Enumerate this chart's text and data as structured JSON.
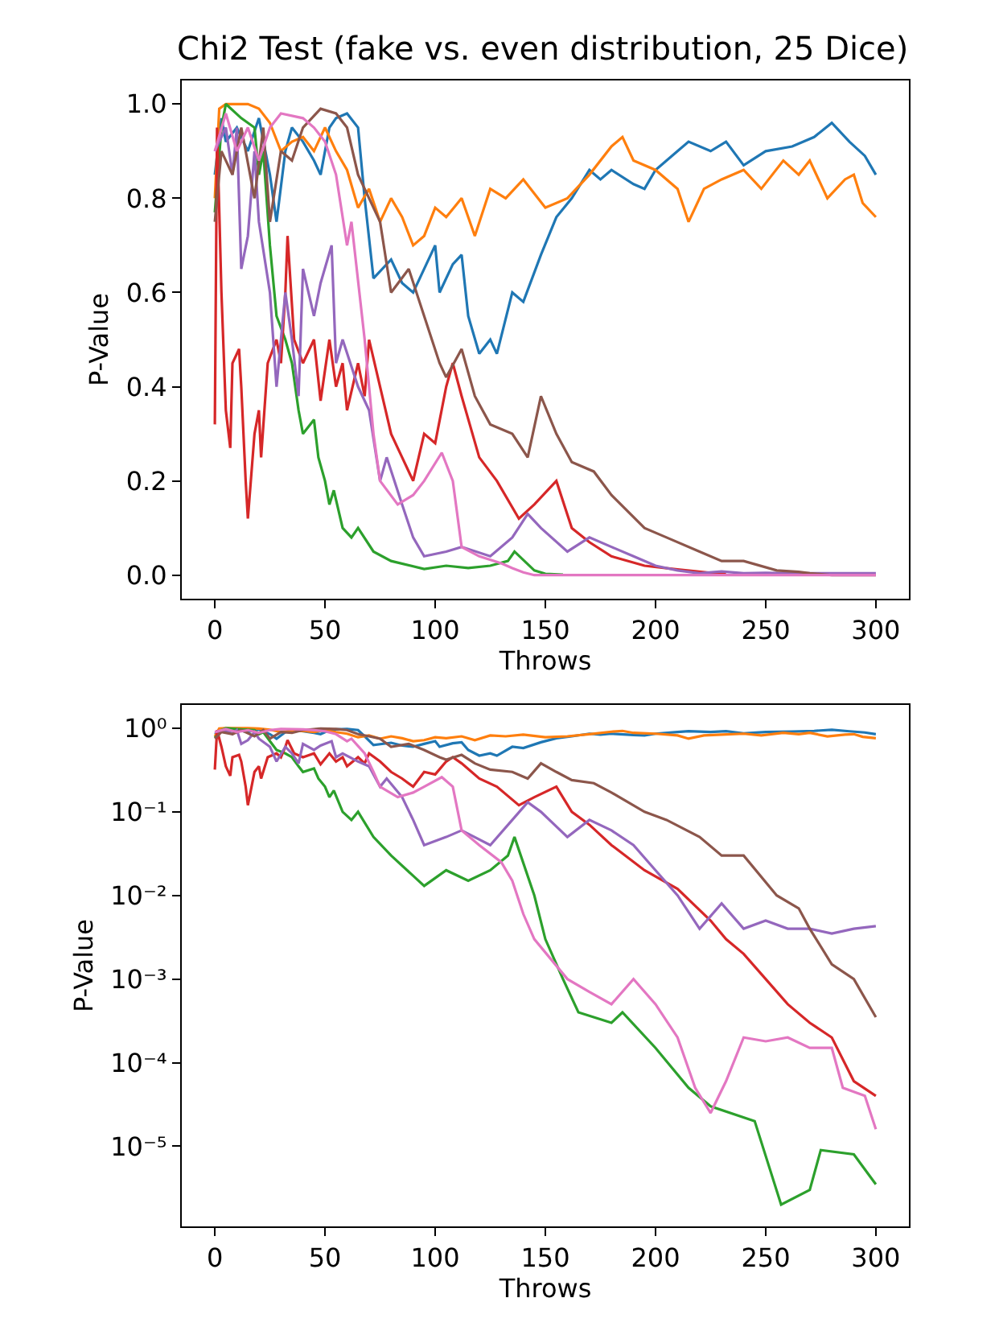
{
  "chart_data": [
    {
      "type": "line",
      "title": "Chi2 Test (fake vs. even distribution, 25 Dice)",
      "xlabel": "Throws",
      "ylabel": "P-Value",
      "xlim": [
        -15,
        315
      ],
      "ylim": [
        -0.05,
        1.05
      ],
      "xticks": [
        0,
        50,
        100,
        150,
        200,
        250,
        300
      ],
      "yticks": [
        {
          "value": 0,
          "label": "0.0"
        },
        0.2,
        0.4,
        0.6,
        0.8,
        {
          "value": 1,
          "label": "1.0"
        }
      ],
      "marker": "none",
      "line_style": "solid",
      "series": [
        {
          "color": "#1f77b4",
          "x": [
            0,
            3,
            5,
            10,
            15,
            20,
            25,
            28,
            32,
            35,
            40,
            45,
            48,
            52,
            55,
            60,
            65,
            68,
            72,
            80,
            85,
            90,
            95,
            100,
            102,
            108,
            112,
            115,
            120,
            125,
            128,
            135,
            140,
            148,
            155,
            162,
            170,
            175,
            180,
            190,
            195,
            200,
            210,
            215,
            225,
            232,
            240,
            250,
            262,
            272,
            280,
            288,
            295,
            300
          ],
          "values": [
            0.85,
            0.97,
            0.92,
            0.95,
            0.9,
            0.97,
            0.85,
            0.75,
            0.9,
            0.95,
            0.92,
            0.88,
            0.85,
            0.95,
            0.97,
            0.98,
            0.95,
            0.8,
            0.63,
            0.67,
            0.62,
            0.6,
            0.65,
            0.7,
            0.6,
            0.66,
            0.68,
            0.55,
            0.47,
            0.5,
            0.47,
            0.6,
            0.58,
            0.68,
            0.76,
            0.8,
            0.86,
            0.84,
            0.86,
            0.83,
            0.82,
            0.86,
            0.9,
            0.92,
            0.9,
            0.92,
            0.87,
            0.9,
            0.91,
            0.93,
            0.96,
            0.92,
            0.89,
            0.85
          ]
        },
        {
          "color": "#ff7f0e",
          "x": [
            0,
            2,
            5,
            10,
            15,
            20,
            25,
            30,
            35,
            40,
            45,
            50,
            55,
            60,
            65,
            70,
            75,
            80,
            85,
            90,
            95,
            100,
            105,
            112,
            118,
            125,
            132,
            140,
            150,
            160,
            170,
            180,
            185,
            190,
            200,
            210,
            215,
            222,
            230,
            240,
            248,
            258,
            265,
            270,
            278,
            286,
            290,
            294,
            300
          ],
          "values": [
            0.8,
            0.99,
            1.0,
            1.0,
            1.0,
            0.99,
            0.96,
            0.9,
            0.92,
            0.93,
            0.9,
            0.95,
            0.9,
            0.86,
            0.78,
            0.82,
            0.75,
            0.8,
            0.76,
            0.7,
            0.72,
            0.78,
            0.76,
            0.8,
            0.72,
            0.82,
            0.8,
            0.84,
            0.78,
            0.8,
            0.85,
            0.91,
            0.93,
            0.88,
            0.86,
            0.82,
            0.75,
            0.82,
            0.84,
            0.86,
            0.82,
            0.88,
            0.85,
            0.88,
            0.8,
            0.84,
            0.85,
            0.79,
            0.76
          ]
        },
        {
          "color": "#2ca02c",
          "x": [
            0,
            3,
            5,
            12,
            18,
            20,
            22,
            25,
            28,
            32,
            35,
            38,
            40,
            45,
            47,
            50,
            52,
            54,
            58,
            62,
            65,
            72,
            80,
            95,
            105,
            115,
            125,
            133,
            136,
            145,
            150,
            158
          ],
          "values": [
            0.77,
            0.95,
            1.0,
            0.97,
            0.95,
            0.85,
            0.9,
            0.7,
            0.55,
            0.5,
            0.45,
            0.35,
            0.3,
            0.33,
            0.25,
            0.2,
            0.15,
            0.18,
            0.1,
            0.08,
            0.1,
            0.05,
            0.03,
            0.013,
            0.02,
            0.015,
            0.02,
            0.03,
            0.05,
            0.01,
            0.003,
            0.001
          ]
        },
        {
          "color": "#d62728",
          "x": [
            0,
            1,
            3,
            5,
            7,
            8,
            11,
            12,
            14,
            15,
            18,
            20,
            21,
            24,
            28,
            30,
            32,
            33,
            36,
            40,
            45,
            48,
            52,
            55,
            58,
            60,
            65,
            68,
            70,
            75,
            80,
            85,
            90,
            95,
            100,
            105,
            108,
            112,
            120,
            128,
            138,
            145,
            155,
            162,
            170,
            180,
            195,
            210,
            225,
            232
          ],
          "values": [
            0.32,
            0.95,
            0.6,
            0.35,
            0.27,
            0.45,
            0.48,
            0.4,
            0.2,
            0.12,
            0.3,
            0.35,
            0.25,
            0.45,
            0.5,
            0.45,
            0.6,
            0.72,
            0.5,
            0.45,
            0.5,
            0.37,
            0.5,
            0.4,
            0.45,
            0.35,
            0.45,
            0.38,
            0.5,
            0.4,
            0.3,
            0.25,
            0.2,
            0.3,
            0.28,
            0.4,
            0.45,
            0.38,
            0.25,
            0.2,
            0.12,
            0.15,
            0.2,
            0.1,
            0.07,
            0.04,
            0.02,
            0.012,
            0.005,
            0.003
          ]
        },
        {
          "color": "#9467bd",
          "x": [
            0,
            5,
            8,
            10,
            12,
            15,
            18,
            20,
            25,
            28,
            32,
            35,
            38,
            40,
            45,
            48,
            53,
            55,
            58,
            65,
            70,
            75,
            78,
            85,
            90,
            95,
            105,
            112,
            125,
            135,
            142,
            148,
            160,
            170,
            180,
            190,
            200,
            210,
            220,
            230,
            240,
            250,
            260,
            270,
            280,
            290,
            300
          ],
          "values": [
            0.9,
            0.95,
            0.85,
            0.95,
            0.65,
            0.72,
            0.9,
            0.75,
            0.6,
            0.4,
            0.6,
            0.5,
            0.38,
            0.65,
            0.55,
            0.62,
            0.7,
            0.45,
            0.5,
            0.4,
            0.35,
            0.2,
            0.25,
            0.15,
            0.08,
            0.04,
            0.05,
            0.06,
            0.04,
            0.08,
            0.13,
            0.1,
            0.05,
            0.08,
            0.06,
            0.04,
            0.02,
            0.01,
            0.004,
            0.008,
            0.004,
            0.005,
            0.004,
            0.004,
            0.004,
            0.004,
            0.004
          ]
        },
        {
          "color": "#8c564b",
          "x": [
            0,
            3,
            8,
            12,
            18,
            22,
            25,
            30,
            35,
            40,
            48,
            55,
            60,
            65,
            70,
            75,
            80,
            88,
            95,
            102,
            105,
            112,
            118,
            125,
            135,
            142,
            148,
            155,
            162,
            172,
            180,
            195,
            205,
            220,
            230,
            240,
            255,
            265,
            270,
            280,
            290,
            300
          ],
          "values": [
            0.75,
            0.9,
            0.85,
            0.95,
            0.8,
            0.95,
            0.75,
            0.9,
            0.88,
            0.95,
            0.99,
            0.98,
            0.95,
            0.85,
            0.8,
            0.75,
            0.6,
            0.65,
            0.55,
            0.45,
            0.42,
            0.48,
            0.38,
            0.32,
            0.3,
            0.25,
            0.38,
            0.3,
            0.24,
            0.22,
            0.17,
            0.1,
            0.08,
            0.05,
            0.03,
            0.03,
            0.01,
            0.007,
            0.004,
            0.0,
            0.0,
            0.0
          ]
        },
        {
          "color": "#e377c2",
          "x": [
            0,
            5,
            10,
            15,
            20,
            25,
            30,
            40,
            45,
            50,
            55,
            60,
            62,
            68,
            72,
            75,
            83,
            90,
            95,
            103,
            108,
            112,
            120,
            130,
            135,
            140,
            145,
            160,
            170,
            180,
            190,
            200,
            210,
            218,
            225,
            232,
            240,
            250,
            260,
            270,
            280,
            285,
            295,
            300
          ],
          "values": [
            0.9,
            0.98,
            0.9,
            0.95,
            0.88,
            0.95,
            0.98,
            0.97,
            0.95,
            0.92,
            0.85,
            0.7,
            0.75,
            0.5,
            0.3,
            0.2,
            0.15,
            0.17,
            0.2,
            0.26,
            0.2,
            0.06,
            0.04,
            0.025,
            0.015,
            0.006,
            0.0,
            0.0,
            0.0,
            0.0,
            0.0,
            0.0,
            0.0,
            0.0,
            0.0,
            0.0,
            0.0,
            0.0,
            0.0,
            0.0,
            0.0,
            0.0,
            0.0,
            0.0
          ]
        }
      ]
    },
    {
      "type": "line",
      "xlabel": "Throws",
      "ylabel": "P-Value",
      "log": "y",
      "xlim": [
        -15,
        315
      ],
      "ylim": [
        1.1e-06,
        1.9
      ],
      "xticks": [
        0,
        50,
        100,
        150,
        200,
        250,
        300
      ],
      "yticks": [
        {
          "value": 1e-05,
          "label": "10⁻⁵"
        },
        {
          "value": 0.0001,
          "label": "10⁻⁴"
        },
        {
          "value": 0.001,
          "label": "10⁻³"
        },
        {
          "value": 0.01,
          "label": "10⁻²"
        },
        {
          "value": 0.1,
          "label": "10⁻¹"
        },
        {
          "value": 1,
          "label": "10⁰"
        }
      ],
      "marker": "none",
      "line_style": "solid",
      "series": [
        {
          "color": "#1f77b4",
          "x": [
            0,
            3,
            5,
            10,
            15,
            20,
            25,
            28,
            32,
            35,
            40,
            45,
            48,
            52,
            55,
            60,
            65,
            68,
            72,
            80,
            85,
            90,
            95,
            100,
            102,
            108,
            112,
            115,
            120,
            125,
            128,
            135,
            140,
            148,
            155,
            162,
            170,
            175,
            180,
            190,
            195,
            200,
            210,
            215,
            225,
            232,
            240,
            250,
            262,
            272,
            280,
            288,
            295,
            300
          ],
          "values": [
            0.85,
            0.97,
            0.92,
            0.95,
            0.9,
            0.97,
            0.85,
            0.75,
            0.9,
            0.95,
            0.92,
            0.88,
            0.85,
            0.95,
            0.97,
            0.98,
            0.95,
            0.8,
            0.63,
            0.67,
            0.62,
            0.6,
            0.65,
            0.7,
            0.6,
            0.66,
            0.68,
            0.55,
            0.47,
            0.5,
            0.47,
            0.6,
            0.58,
            0.68,
            0.76,
            0.8,
            0.86,
            0.84,
            0.86,
            0.83,
            0.82,
            0.86,
            0.9,
            0.92,
            0.9,
            0.92,
            0.87,
            0.9,
            0.91,
            0.93,
            0.96,
            0.92,
            0.89,
            0.85
          ]
        },
        {
          "color": "#ff7f0e",
          "x": [
            0,
            2,
            5,
            10,
            15,
            20,
            25,
            30,
            35,
            40,
            45,
            50,
            55,
            60,
            65,
            70,
            75,
            80,
            85,
            90,
            95,
            100,
            105,
            112,
            118,
            125,
            132,
            140,
            150,
            160,
            170,
            180,
            185,
            190,
            200,
            210,
            215,
            222,
            230,
            240,
            248,
            258,
            265,
            270,
            278,
            286,
            290,
            294,
            300
          ],
          "values": [
            0.8,
            0.99,
            1.0,
            1.0,
            1.0,
            0.99,
            0.96,
            0.9,
            0.92,
            0.93,
            0.9,
            0.95,
            0.9,
            0.86,
            0.78,
            0.82,
            0.75,
            0.8,
            0.76,
            0.7,
            0.72,
            0.78,
            0.76,
            0.8,
            0.72,
            0.82,
            0.8,
            0.84,
            0.78,
            0.8,
            0.85,
            0.91,
            0.93,
            0.88,
            0.86,
            0.82,
            0.75,
            0.82,
            0.84,
            0.86,
            0.82,
            0.88,
            0.85,
            0.88,
            0.8,
            0.84,
            0.85,
            0.79,
            0.76
          ]
        },
        {
          "color": "#2ca02c",
          "x": [
            0,
            3,
            5,
            12,
            18,
            20,
            22,
            25,
            28,
            32,
            35,
            38,
            40,
            45,
            47,
            50,
            52,
            54,
            58,
            62,
            65,
            72,
            80,
            95,
            105,
            115,
            125,
            133,
            136,
            145,
            150,
            158,
            165,
            180,
            185,
            200,
            215,
            225,
            245,
            257,
            270,
            275,
            290,
            300
          ],
          "values": [
            0.77,
            0.95,
            1.0,
            0.97,
            0.95,
            0.85,
            0.9,
            0.7,
            0.55,
            0.5,
            0.45,
            0.35,
            0.3,
            0.33,
            0.25,
            0.2,
            0.15,
            0.18,
            0.1,
            0.08,
            0.1,
            0.05,
            0.03,
            0.013,
            0.02,
            0.015,
            0.02,
            0.03,
            0.05,
            0.01,
            0.003,
            0.001,
            0.0004,
            0.0003,
            0.0004,
            0.00015,
            5e-05,
            3e-05,
            2e-05,
            2e-06,
            3e-06,
            9e-06,
            8e-06,
            3.5e-06
          ]
        },
        {
          "color": "#d62728",
          "x": [
            0,
            1,
            3,
            5,
            7,
            8,
            11,
            12,
            14,
            15,
            18,
            20,
            21,
            24,
            28,
            30,
            32,
            33,
            36,
            40,
            45,
            48,
            52,
            55,
            58,
            60,
            65,
            68,
            70,
            75,
            80,
            85,
            90,
            95,
            100,
            105,
            108,
            112,
            120,
            128,
            138,
            145,
            155,
            162,
            170,
            180,
            195,
            210,
            225,
            232,
            240,
            250,
            260,
            270,
            280,
            290,
            300
          ],
          "values": [
            0.32,
            0.95,
            0.6,
            0.35,
            0.27,
            0.45,
            0.48,
            0.4,
            0.2,
            0.12,
            0.3,
            0.35,
            0.25,
            0.45,
            0.5,
            0.45,
            0.6,
            0.72,
            0.5,
            0.45,
            0.5,
            0.37,
            0.5,
            0.4,
            0.45,
            0.35,
            0.45,
            0.38,
            0.5,
            0.4,
            0.3,
            0.25,
            0.2,
            0.3,
            0.28,
            0.4,
            0.45,
            0.38,
            0.25,
            0.2,
            0.12,
            0.15,
            0.2,
            0.1,
            0.07,
            0.04,
            0.02,
            0.012,
            0.005,
            0.003,
            0.002,
            0.001,
            0.0005,
            0.0003,
            0.0002,
            6e-05,
            4e-05
          ]
        },
        {
          "color": "#9467bd",
          "x": [
            0,
            5,
            8,
            10,
            12,
            15,
            18,
            20,
            25,
            28,
            32,
            35,
            38,
            40,
            45,
            48,
            53,
            55,
            58,
            65,
            70,
            75,
            78,
            85,
            90,
            95,
            105,
            112,
            125,
            135,
            142,
            148,
            160,
            170,
            180,
            190,
            200,
            210,
            220,
            230,
            240,
            250,
            260,
            270,
            280,
            290,
            300
          ],
          "values": [
            0.9,
            0.95,
            0.85,
            0.95,
            0.65,
            0.72,
            0.9,
            0.75,
            0.6,
            0.4,
            0.6,
            0.5,
            0.38,
            0.65,
            0.55,
            0.62,
            0.7,
            0.45,
            0.5,
            0.4,
            0.35,
            0.2,
            0.25,
            0.15,
            0.08,
            0.04,
            0.05,
            0.06,
            0.04,
            0.08,
            0.13,
            0.1,
            0.05,
            0.08,
            0.06,
            0.04,
            0.02,
            0.01,
            0.004,
            0.008,
            0.004,
            0.005,
            0.004,
            0.004,
            0.0035,
            0.004,
            0.0043
          ]
        },
        {
          "color": "#8c564b",
          "x": [
            0,
            3,
            8,
            12,
            18,
            22,
            25,
            30,
            35,
            40,
            48,
            55,
            60,
            65,
            70,
            75,
            80,
            88,
            95,
            102,
            105,
            112,
            118,
            125,
            135,
            142,
            148,
            155,
            162,
            172,
            180,
            195,
            205,
            220,
            230,
            240,
            255,
            265,
            270,
            280,
            290,
            300
          ],
          "values": [
            0.75,
            0.9,
            0.85,
            0.95,
            0.8,
            0.95,
            0.75,
            0.9,
            0.88,
            0.95,
            0.99,
            0.98,
            0.95,
            0.85,
            0.8,
            0.75,
            0.6,
            0.65,
            0.55,
            0.45,
            0.42,
            0.48,
            0.38,
            0.32,
            0.3,
            0.25,
            0.38,
            0.3,
            0.24,
            0.22,
            0.17,
            0.1,
            0.08,
            0.05,
            0.03,
            0.03,
            0.01,
            0.007,
            0.004,
            0.0015,
            0.001,
            0.00035
          ]
        },
        {
          "color": "#e377c2",
          "x": [
            0,
            5,
            10,
            15,
            20,
            25,
            30,
            40,
            45,
            50,
            55,
            60,
            62,
            68,
            72,
            75,
            83,
            90,
            95,
            103,
            108,
            112,
            120,
            130,
            135,
            140,
            145,
            160,
            170,
            180,
            190,
            200,
            210,
            218,
            225,
            232,
            240,
            250,
            260,
            270,
            280,
            285,
            295,
            300
          ],
          "values": [
            0.9,
            0.98,
            0.9,
            0.95,
            0.88,
            0.95,
            0.98,
            0.97,
            0.95,
            0.92,
            0.85,
            0.7,
            0.75,
            0.5,
            0.3,
            0.2,
            0.15,
            0.17,
            0.2,
            0.26,
            0.2,
            0.06,
            0.04,
            0.025,
            0.015,
            0.006,
            0.003,
            0.001,
            0.0007,
            0.0005,
            0.001,
            0.0005,
            0.0002,
            5e-05,
            2.5e-05,
            6e-05,
            0.0002,
            0.00018,
            0.0002,
            0.00015,
            0.00015,
            5e-05,
            4e-05,
            1.6e-05
          ]
        }
      ]
    }
  ]
}
